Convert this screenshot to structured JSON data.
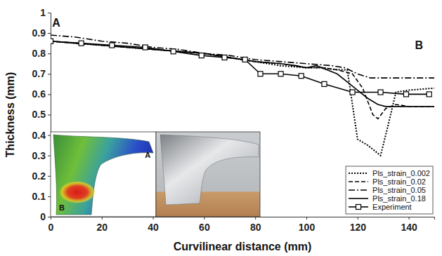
{
  "chart_data": {
    "type": "line",
    "x_label": "Curvilinear distance (mm)",
    "y_label": "Thickness (mm)",
    "xlim": [
      0,
      150
    ],
    "xticks": [
      0,
      20,
      40,
      60,
      80,
      100,
      120,
      140
    ],
    "ylim": [
      0,
      1
    ],
    "yticks": [
      0,
      0.1,
      0.2,
      0.3,
      0.4,
      0.5,
      0.6,
      0.7,
      0.8,
      0.9,
      1
    ],
    "grid": false,
    "legend": "lower right",
    "series": [
      {
        "name": "Pls_strain_0.002",
        "color": "#000000",
        "line_style": "dotted",
        "x": [
          0,
          10,
          20,
          30,
          40,
          50,
          60,
          70,
          80,
          90,
          100,
          106,
          112,
          116,
          118,
          120,
          124,
          129,
          132,
          135,
          140,
          150
        ],
        "values": [
          0.86,
          0.85,
          0.84,
          0.83,
          0.82,
          0.81,
          0.8,
          0.78,
          0.76,
          0.74,
          0.73,
          0.73,
          0.72,
          0.72,
          0.55,
          0.38,
          0.35,
          0.3,
          0.45,
          0.61,
          0.62,
          0.63
        ]
      },
      {
        "name": "Pls_strain_0.02",
        "color": "#000000",
        "line_style": "dashed",
        "x": [
          0,
          10,
          20,
          30,
          40,
          50,
          60,
          70,
          80,
          90,
          100,
          106,
          112,
          118,
          122,
          126,
          128,
          131,
          135,
          140,
          150
        ],
        "values": [
          0.86,
          0.85,
          0.84,
          0.83,
          0.82,
          0.81,
          0.8,
          0.78,
          0.76,
          0.75,
          0.73,
          0.73,
          0.72,
          0.7,
          0.63,
          0.5,
          0.48,
          0.53,
          0.55,
          0.54,
          0.54
        ]
      },
      {
        "name": "Pls_strain_0.05",
        "color": "#000000",
        "line_style": "dashdot",
        "x": [
          0,
          10,
          20,
          30,
          40,
          50,
          60,
          70,
          80,
          90,
          100,
          110,
          115,
          120,
          125,
          130,
          140,
          150
        ],
        "values": [
          0.89,
          0.88,
          0.86,
          0.85,
          0.83,
          0.82,
          0.8,
          0.79,
          0.77,
          0.76,
          0.75,
          0.74,
          0.73,
          0.7,
          0.68,
          0.68,
          0.68,
          0.68
        ]
      },
      {
        "name": "Pls_strain_0.18",
        "color": "#000000",
        "line_style": "solid",
        "x": [
          0,
          10,
          20,
          30,
          40,
          50,
          60,
          70,
          80,
          90,
          96,
          100,
          104,
          108,
          112,
          116,
          120,
          124,
          128,
          131,
          140,
          150
        ],
        "values": [
          0.86,
          0.85,
          0.84,
          0.83,
          0.82,
          0.81,
          0.8,
          0.78,
          0.76,
          0.75,
          0.74,
          0.73,
          0.74,
          0.72,
          0.7,
          0.66,
          0.62,
          0.58,
          0.55,
          0.54,
          0.54,
          0.54
        ]
      },
      {
        "name": "Experiment",
        "color": "#000000",
        "line_style": "solid",
        "marker": "square",
        "x": [
          0,
          12,
          24,
          37,
          48,
          59,
          68,
          76,
          82,
          90,
          98,
          107,
          118,
          129,
          139,
          148
        ],
        "values": [
          0.86,
          0.85,
          0.84,
          0.83,
          0.81,
          0.79,
          0.78,
          0.77,
          0.7,
          0.7,
          0.69,
          0.65,
          0.61,
          0.61,
          0.6,
          0.6
        ]
      }
    ],
    "annotations": [
      {
        "text": "A",
        "x": 2.2,
        "y": 0.93
      },
      {
        "text": "B",
        "x": 144,
        "y": 0.82
      }
    ],
    "inset_labels": [
      {
        "text": "A",
        "x": 38,
        "y": 0.29
      },
      {
        "text": "B",
        "x": 4.4,
        "y": 0.03
      }
    ]
  }
}
